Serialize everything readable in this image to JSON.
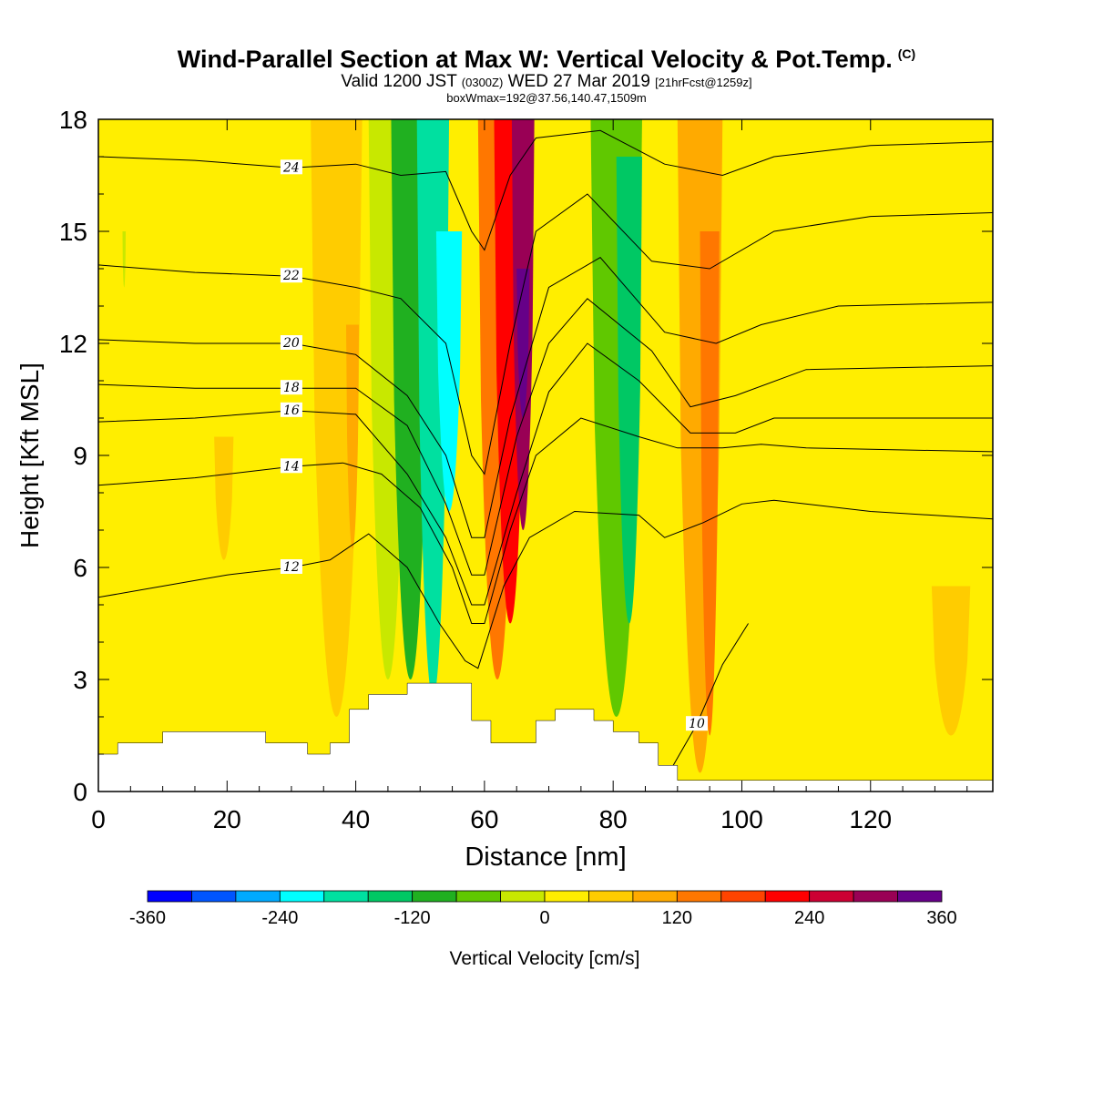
{
  "header": {
    "title": "Wind-Parallel Section at Max W: Vertical Velocity & Pot.Temp.",
    "title_mark": "(C)",
    "valid_prefix": "Valid 1200 JST",
    "valid_utc": "(0300Z)",
    "valid_date": "WED 27 Mar 2019",
    "forecast_info": "[21hrFcst@1259z]",
    "box_info": "boxWmax=192@37.56,140.47,1509m"
  },
  "chart_data": {
    "type": "heatmap",
    "xlabel": "Distance [nm]",
    "ylabel": "Height [Kft MSL]",
    "xlim": [
      0,
      139
    ],
    "ylim": [
      0,
      18
    ],
    "x_ticks": [
      0,
      20,
      40,
      60,
      80,
      100,
      120
    ],
    "y_ticks": [
      0,
      3,
      6,
      9,
      12,
      15,
      18
    ],
    "colorbar": {
      "label": "Vertical Velocity [cm/s]",
      "min": -360,
      "max": 360,
      "step": 40,
      "tick_labels": [
        -360,
        -240,
        -120,
        0,
        120,
        240,
        360
      ],
      "colors": [
        "#0000ff",
        "#0055ff",
        "#00aaff",
        "#00ffff",
        "#00e0a0",
        "#00c864",
        "#20b020",
        "#60c800",
        "#c8e800",
        "#ffee00",
        "#ffcc00",
        "#ffaa00",
        "#ff7700",
        "#ff4400",
        "#ff0000",
        "#cc0033",
        "#990055",
        "#660088"
      ]
    },
    "vertical_velocity_cm_s": {
      "background": 20,
      "bands": [
        {
          "x": 4,
          "w": 0.5,
          "top": 15,
          "bottom": 13.5,
          "value": -40
        },
        {
          "x": 19.5,
          "w": 3,
          "top": 9.5,
          "bottom": 6.2,
          "value": 40
        },
        {
          "x": 37,
          "w": 8,
          "top": 18,
          "bottom": 2,
          "value": 40
        },
        {
          "x": 39.5,
          "w": 2,
          "top": 12.5,
          "bottom": 6.5,
          "value": 80
        },
        {
          "x": 45,
          "w": 6,
          "top": 18,
          "bottom": 3,
          "value": -40
        },
        {
          "x": 48.5,
          "w": 6,
          "top": 18,
          "bottom": 3,
          "value": -120
        },
        {
          "x": 52,
          "w": 5,
          "top": 18,
          "bottom": 2.5,
          "value": -200
        },
        {
          "x": 54.5,
          "w": 4,
          "top": 15,
          "bottom": 7.5,
          "value": -240
        },
        {
          "x": 62,
          "w": 6,
          "top": 18,
          "bottom": 3,
          "value": 140
        },
        {
          "x": 64,
          "w": 5,
          "top": 18,
          "bottom": 4.5,
          "value": 220
        },
        {
          "x": 66,
          "w": 3.5,
          "top": 18,
          "bottom": 7,
          "value": 300
        },
        {
          "x": 66,
          "w": 2,
          "top": 14,
          "bottom": 10,
          "value": 360
        },
        {
          "x": 80.5,
          "w": 8,
          "top": 18,
          "bottom": 2,
          "value": -80
        },
        {
          "x": 82.5,
          "w": 4,
          "top": 17,
          "bottom": 4.5,
          "value": -160
        },
        {
          "x": 93.5,
          "w": 7,
          "top": 18,
          "bottom": 0.5,
          "value": 80
        },
        {
          "x": 95,
          "w": 3,
          "top": 15,
          "bottom": 1.5,
          "value": 120
        },
        {
          "x": 132.5,
          "w": 6,
          "top": 5.5,
          "bottom": 1.5,
          "value": 40
        }
      ]
    },
    "theta_contours": [
      {
        "level": 10,
        "label": true,
        "points": [
          [
            88,
            0.3
          ],
          [
            93,
            1.8
          ],
          [
            97,
            3.4
          ],
          [
            101,
            4.5
          ]
        ]
      },
      {
        "level": 12,
        "label": true,
        "points": [
          [
            0,
            5.2
          ],
          [
            10,
            5.5
          ],
          [
            20,
            5.8
          ],
          [
            30,
            6
          ],
          [
            36,
            6.2
          ],
          [
            42,
            6.9
          ],
          [
            48,
            6
          ],
          [
            53,
            4.5
          ],
          [
            57,
            3.5
          ],
          [
            59,
            3.3
          ],
          [
            63,
            5.5
          ],
          [
            67,
            6.8
          ],
          [
            74,
            7.5
          ],
          [
            84,
            7.4
          ],
          [
            88,
            6.8
          ],
          [
            94,
            7.2
          ],
          [
            100,
            7.7
          ],
          [
            105,
            7.8
          ],
          [
            120,
            7.5
          ],
          [
            139,
            7.3
          ]
        ]
      },
      {
        "level": 14,
        "label": true,
        "points": [
          [
            0,
            8.2
          ],
          [
            15,
            8.4
          ],
          [
            30,
            8.7
          ],
          [
            38,
            8.8
          ],
          [
            44,
            8.5
          ],
          [
            50,
            7.6
          ],
          [
            55,
            6
          ],
          [
            58,
            4.5
          ],
          [
            60,
            4.5
          ],
          [
            64,
            7
          ],
          [
            68,
            9
          ],
          [
            75,
            10
          ],
          [
            84,
            9.5
          ],
          [
            90,
            9.2
          ],
          [
            97,
            9.2
          ],
          [
            103,
            9.3
          ],
          [
            110,
            9.2
          ],
          [
            139,
            9.1
          ]
        ]
      },
      {
        "level": 16,
        "label": true,
        "points": [
          [
            0,
            9.9
          ],
          [
            15,
            10.0
          ],
          [
            30,
            10.2
          ],
          [
            40,
            10.1
          ],
          [
            48,
            8.5
          ],
          [
            54,
            6.8
          ],
          [
            58,
            5
          ],
          [
            60,
            5
          ],
          [
            65,
            8
          ],
          [
            70,
            10.7
          ],
          [
            76,
            12
          ],
          [
            84,
            11
          ],
          [
            92,
            9.6
          ],
          [
            99,
            9.6
          ],
          [
            105,
            10
          ],
          [
            139,
            10
          ]
        ]
      },
      {
        "level": 18,
        "label": true,
        "points": [
          [
            0,
            10.9
          ],
          [
            15,
            10.8
          ],
          [
            30,
            10.8
          ],
          [
            40,
            10.8
          ],
          [
            48,
            9.8
          ],
          [
            54,
            7.7
          ],
          [
            58,
            5.8
          ],
          [
            60,
            5.8
          ],
          [
            65,
            9.5
          ],
          [
            70,
            12
          ],
          [
            76,
            13.2
          ],
          [
            86,
            11.8
          ],
          [
            92,
            10.3
          ],
          [
            99,
            10.6
          ],
          [
            110,
            11.3
          ],
          [
            139,
            11.4
          ]
        ]
      },
      {
        "level": 20,
        "label": true,
        "points": [
          [
            0,
            12.1
          ],
          [
            15,
            12
          ],
          [
            30,
            12
          ],
          [
            40,
            11.7
          ],
          [
            48,
            10.6
          ],
          [
            54,
            9
          ],
          [
            58,
            6.8
          ],
          [
            60,
            6.8
          ],
          [
            64,
            10
          ],
          [
            70,
            13.5
          ],
          [
            78,
            14.3
          ],
          [
            88,
            12.3
          ],
          [
            96,
            12
          ],
          [
            103,
            12.5
          ],
          [
            115,
            13
          ],
          [
            139,
            13.1
          ]
        ]
      },
      {
        "level": 22,
        "label": true,
        "points": [
          [
            0,
            14.1
          ],
          [
            15,
            13.9
          ],
          [
            30,
            13.8
          ],
          [
            40,
            13.5
          ],
          [
            47,
            13.2
          ],
          [
            54,
            12
          ],
          [
            58,
            9
          ],
          [
            60,
            8.5
          ],
          [
            64,
            12
          ],
          [
            68,
            15
          ],
          [
            76,
            16
          ],
          [
            86,
            14.2
          ],
          [
            95,
            14
          ],
          [
            105,
            15
          ],
          [
            120,
            15.4
          ],
          [
            139,
            15.5
          ]
        ]
      },
      {
        "level": 24,
        "label": true,
        "points": [
          [
            0,
            17
          ],
          [
            15,
            16.9
          ],
          [
            30,
            16.7
          ],
          [
            40,
            16.8
          ],
          [
            47,
            16.5
          ],
          [
            54,
            16.6
          ],
          [
            58,
            15
          ],
          [
            60,
            14.5
          ],
          [
            64,
            16.5
          ],
          [
            68,
            17.5
          ],
          [
            78,
            17.7
          ],
          [
            88,
            16.8
          ],
          [
            97,
            16.5
          ],
          [
            105,
            17
          ],
          [
            120,
            17.3
          ],
          [
            139,
            17.4
          ]
        ]
      }
    ],
    "terrain": [
      [
        0,
        1
      ],
      [
        3,
        1
      ],
      [
        3,
        1.3
      ],
      [
        10,
        1.3
      ],
      [
        10,
        1.6
      ],
      [
        26,
        1.6
      ],
      [
        26,
        1.3
      ],
      [
        32.5,
        1.3
      ],
      [
        32.5,
        1
      ],
      [
        36,
        1
      ],
      [
        36,
        1.3
      ],
      [
        39,
        1.3
      ],
      [
        39,
        2.2
      ],
      [
        42,
        2.2
      ],
      [
        42,
        2.6
      ],
      [
        48,
        2.6
      ],
      [
        48,
        2.9
      ],
      [
        58,
        2.9
      ],
      [
        58,
        1.9
      ],
      [
        61,
        1.9
      ],
      [
        61,
        1.3
      ],
      [
        68,
        1.3
      ],
      [
        68,
        1.9
      ],
      [
        71,
        1.9
      ],
      [
        71,
        2.2
      ],
      [
        77,
        2.2
      ],
      [
        77,
        1.9
      ],
      [
        80,
        1.9
      ],
      [
        80,
        1.6
      ],
      [
        84,
        1.6
      ],
      [
        84,
        1.3
      ],
      [
        87,
        1.3
      ],
      [
        87,
        0.7
      ],
      [
        90,
        0.7
      ],
      [
        90,
        0.3
      ],
      [
        139,
        0.3
      ]
    ]
  }
}
